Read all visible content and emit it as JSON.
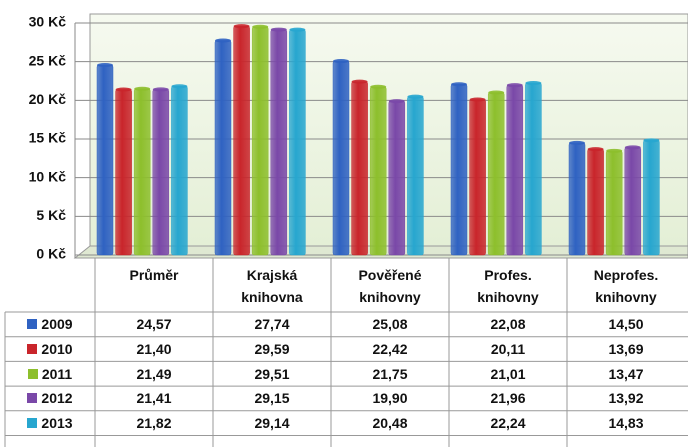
{
  "chart_data": {
    "type": "bar",
    "categories": [
      "Průměr",
      "Krajská knihovna",
      "Pověřené knihovny",
      "Profes. knihovny",
      "Neprofes. knihovny"
    ],
    "series": [
      {
        "name": "2009",
        "color": "#2f62c2",
        "values": [
          24.57,
          27.74,
          25.08,
          22.08,
          14.5
        ],
        "value_labels": [
          "24,57",
          "27,74",
          "25,08",
          "22,08",
          "14,50"
        ]
      },
      {
        "name": "2010",
        "color": "#c9252b",
        "values": [
          21.4,
          29.59,
          22.42,
          20.11,
          13.69
        ],
        "value_labels": [
          "21,40",
          "29,59",
          "22,42",
          "20,11",
          "13,69"
        ]
      },
      {
        "name": "2011",
        "color": "#8dbf2c",
        "values": [
          21.49,
          29.51,
          21.75,
          21.01,
          13.47
        ],
        "value_labels": [
          "21,49",
          "29,51",
          "21,75",
          "21,01",
          "13,47"
        ]
      },
      {
        "name": "2012",
        "color": "#7a48a8",
        "values": [
          21.41,
          29.15,
          19.9,
          21.96,
          13.92
        ],
        "value_labels": [
          "21,41",
          "29,15",
          "19,90",
          "21,96",
          "13,92"
        ]
      },
      {
        "name": "2013",
        "color": "#27a6cf",
        "values": [
          21.82,
          29.14,
          20.48,
          22.24,
          14.83
        ],
        "value_labels": [
          "21,82",
          "29,14",
          "20,48",
          "22,24",
          "14,83"
        ]
      }
    ],
    "ylim": [
      0,
      30
    ],
    "yticks": [
      {
        "value": 0,
        "label": "0 Kč"
      },
      {
        "value": 5,
        "label": "5 Kč"
      },
      {
        "value": 10,
        "label": "10 Kč"
      },
      {
        "value": 15,
        "label": "15 Kč"
      },
      {
        "value": 20,
        "label": "20 Kč"
      },
      {
        "value": 25,
        "label": "25 Kč"
      },
      {
        "value": 30,
        "label": "30 Kč"
      }
    ],
    "grid": true
  }
}
